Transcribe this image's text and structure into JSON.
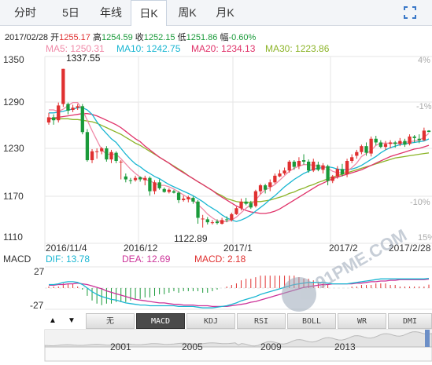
{
  "tabs": [
    {
      "label": "分时",
      "active": false
    },
    {
      "label": "5日",
      "active": false
    },
    {
      "label": "年线",
      "active": false
    },
    {
      "label": "日K",
      "active": true
    },
    {
      "label": "周K",
      "active": false
    },
    {
      "label": "月K",
      "active": false
    }
  ],
  "quote": {
    "date": "2017/02/28",
    "open_label": "开",
    "open": "1255.17",
    "high_label": "高",
    "high": "1254.59",
    "close_label": "收",
    "close": "1252.15",
    "low_label": "低",
    "low": "1251.86",
    "change_label": "幅",
    "change": "-0.60%"
  },
  "ma": [
    {
      "label": "MA5: 1250.31",
      "color": "#f08aa8"
    },
    {
      "label": "MA10: 1242.75",
      "color": "#19b6d2"
    },
    {
      "label": "MA20: 1234.13",
      "color": "#e0336a"
    },
    {
      "label": "MA30: 1223.86",
      "color": "#8cb428"
    }
  ],
  "y_ticks": [
    "1350",
    "1290",
    "1230",
    "1170",
    "1110"
  ],
  "pct_ticks": [
    "4%",
    "-1%",
    "-10%",
    "15%"
  ],
  "x_ticks": [
    "2016/11/4",
    "2016/12",
    "2017/1",
    "2017/2",
    "2017/2/28"
  ],
  "annotations": {
    "high": "1337.55",
    "low": "1122.89"
  },
  "macd": {
    "label": "MACD",
    "dif": "DIF: 13.78",
    "dea": "DEA: 12.69",
    "macd": "MACD: 2.18",
    "dif_color": "#19b6d2",
    "dea_color": "#cc3399",
    "macd_color": "#e03030",
    "y_ticks": [
      "27",
      "-27"
    ]
  },
  "indicator_buttons": [
    {
      "label": "无",
      "active": false
    },
    {
      "label": "MACD",
      "active": true
    },
    {
      "label": "KDJ",
      "active": false
    },
    {
      "label": "RSI",
      "active": false
    },
    {
      "label": "BOLL",
      "active": false
    },
    {
      "label": "WR",
      "active": false
    },
    {
      "label": "DMI",
      "active": false
    }
  ],
  "arrows": {
    "up": "▲",
    "down": "▼"
  },
  "timeline_ticks": [
    "2001",
    "2005",
    "2009",
    "2013"
  ],
  "watermark": "91PME.COM",
  "chart_data": {
    "type": "candlestick",
    "title": "",
    "xlabel": "",
    "ylabel": "",
    "ylim": [
      1100,
      1360
    ],
    "x_range": [
      "2016-10-26",
      "2017-02-28"
    ],
    "candles": [
      [
        1265,
        1272,
        1262,
        1278
      ],
      [
        1272,
        1268,
        1262,
        1276
      ],
      [
        1268,
        1288,
        1265,
        1292
      ],
      [
        1290,
        1337.55,
        1286,
        1337.55
      ],
      [
        1290,
        1281,
        1276,
        1292
      ],
      [
        1282,
        1285,
        1279,
        1289
      ],
      [
        1285,
        1287,
        1282,
        1290
      ],
      [
        1287,
        1252,
        1249,
        1290
      ],
      [
        1252,
        1214,
        1212,
        1256
      ],
      [
        1214,
        1226,
        1210,
        1229
      ],
      [
        1225,
        1226,
        1216,
        1230
      ],
      [
        1226,
        1230,
        1222,
        1232
      ],
      [
        1230,
        1215,
        1212,
        1233
      ],
      [
        1215,
        1225,
        1210,
        1228
      ],
      [
        1224,
        1213,
        1210,
        1226
      ],
      [
        1212,
        1212,
        1188,
        1214
      ],
      [
        1192,
        1188,
        1184,
        1196
      ],
      [
        1187,
        1186,
        1182,
        1190
      ],
      [
        1187,
        1190,
        1185,
        1193
      ],
      [
        1191,
        1188,
        1185,
        1192
      ],
      [
        1187,
        1190,
        1180,
        1193
      ],
      [
        1190,
        1172,
        1166,
        1192
      ],
      [
        1172,
        1184,
        1168,
        1187
      ],
      [
        1184,
        1176,
        1174,
        1188
      ],
      [
        1175,
        1171,
        1170,
        1177
      ],
      [
        1171,
        1174,
        1169,
        1176
      ],
      [
        1172,
        1170,
        1169,
        1174
      ],
      [
        1170,
        1160,
        1156,
        1172
      ],
      [
        1160,
        1162,
        1158,
        1166
      ],
      [
        1161,
        1164,
        1157,
        1166
      ],
      [
        1163,
        1158,
        1155,
        1165
      ],
      [
        1158,
        1136,
        1128,
        1160
      ],
      [
        1135,
        1135,
        1122.89,
        1140
      ],
      [
        1134,
        1130,
        1127,
        1137
      ],
      [
        1130,
        1130,
        1127,
        1133
      ],
      [
        1131,
        1129,
        1127,
        1134
      ],
      [
        1128,
        1133,
        1127,
        1136
      ],
      [
        1134,
        1133,
        1130,
        1138
      ],
      [
        1133,
        1141,
        1131,
        1143
      ],
      [
        1141,
        1149,
        1140,
        1151
      ],
      [
        1149,
        1158,
        1146,
        1162
      ],
      [
        1158,
        1155,
        1153,
        1163
      ],
      [
        1156,
        1150,
        1148,
        1159
      ],
      [
        1152,
        1172,
        1150,
        1174
      ],
      [
        1172,
        1180,
        1168,
        1182
      ],
      [
        1180,
        1174,
        1169,
        1182
      ],
      [
        1178,
        1184,
        1172,
        1188
      ],
      [
        1184,
        1193,
        1182,
        1196
      ],
      [
        1192,
        1196,
        1191,
        1201
      ],
      [
        1196,
        1200,
        1194,
        1204
      ],
      [
        1200,
        1212,
        1197,
        1214
      ],
      [
        1212,
        1205,
        1201,
        1214
      ],
      [
        1206,
        1213,
        1202,
        1218
      ],
      [
        1214,
        1212,
        1208,
        1222
      ],
      [
        1212,
        1200,
        1197,
        1215
      ],
      [
        1200,
        1212,
        1198,
        1216
      ],
      [
        1208,
        1201,
        1199,
        1212
      ],
      [
        1201,
        1207,
        1196,
        1210
      ],
      [
        1206,
        1186,
        1180,
        1208
      ],
      [
        1186,
        1192,
        1183,
        1194
      ],
      [
        1192,
        1202,
        1189,
        1206
      ],
      [
        1202,
        1195,
        1192,
        1209
      ],
      [
        1195,
        1213,
        1191,
        1216
      ],
      [
        1213,
        1218,
        1210,
        1222
      ],
      [
        1220,
        1225,
        1216,
        1228
      ],
      [
        1225,
        1233,
        1222,
        1235
      ],
      [
        1233,
        1224,
        1220,
        1238
      ],
      [
        1223,
        1243,
        1219,
        1246
      ],
      [
        1243,
        1238,
        1234,
        1247
      ],
      [
        1238,
        1232,
        1230,
        1241
      ],
      [
        1232,
        1236,
        1228,
        1240
      ],
      [
        1236,
        1238,
        1230,
        1241
      ],
      [
        1238,
        1236,
        1231,
        1240
      ],
      [
        1236,
        1240,
        1233,
        1244
      ],
      [
        1240,
        1235,
        1232,
        1243
      ],
      [
        1236,
        1246,
        1234,
        1249
      ],
      [
        1246,
        1244,
        1238,
        1248
      ],
      [
        1243,
        1241,
        1237,
        1249
      ],
      [
        1241,
        1254,
        1240,
        1258
      ],
      [
        1254,
        1252.15,
        1251.86,
        1254.59
      ]
    ],
    "ma5": [
      1282,
      1282,
      1280,
      1283,
      1288,
      1292,
      1292,
      1282,
      1268,
      1254,
      1241,
      1228,
      1222,
      1222,
      1222,
      1216,
      1209,
      1202,
      1196,
      1191,
      1188,
      1186,
      1183,
      1180,
      1180,
      1178,
      1175,
      1171,
      1167,
      1163,
      1160,
      1154,
      1148,
      1141,
      1136,
      1132,
      1131,
      1131,
      1133,
      1137,
      1143,
      1149,
      1154,
      1160,
      1168,
      1174,
      1177,
      1181,
      1187,
      1193,
      1199,
      1203,
      1206,
      1208,
      1208,
      1207,
      1206,
      1206,
      1203,
      1199,
      1197,
      1197,
      1199,
      1204,
      1210,
      1219,
      1223,
      1227,
      1234,
      1237,
      1237,
      1237,
      1237,
      1237,
      1238,
      1239,
      1240,
      1241,
      1245,
      1250.31
    ],
    "ma10": [
      1278,
      1278,
      1279,
      1280,
      1282,
      1283,
      1285,
      1285,
      1282,
      1276,
      1266,
      1257,
      1250,
      1243,
      1238,
      1230,
      1222,
      1215,
      1209,
      1205,
      1200,
      1196,
      1192,
      1189,
      1185,
      1181,
      1178,
      1175,
      1172,
      1169,
      1166,
      1162,
      1158,
      1153,
      1149,
      1145,
      1140,
      1136,
      1133,
      1131,
      1133,
      1136,
      1140,
      1145,
      1150,
      1155,
      1161,
      1166,
      1172,
      1178,
      1183,
      1188,
      1192,
      1196,
      1199,
      1202,
      1203,
      1204,
      1205,
      1204,
      1202,
      1201,
      1201,
      1202,
      1204,
      1207,
      1211,
      1215,
      1219,
      1224,
      1228,
      1231,
      1233,
      1235,
      1236,
      1237,
      1238,
      1239,
      1240,
      1242.75
    ],
    "ma20": [
      1270,
      1271,
      1272,
      1273,
      1274,
      1275,
      1276,
      1277,
      1277,
      1276,
      1274,
      1271,
      1268,
      1265,
      1262,
      1258,
      1253,
      1248,
      1243,
      1239,
      1233,
      1228,
      1223,
      1218,
      1214,
      1210,
      1205,
      1201,
      1197,
      1193,
      1189,
      1185,
      1181,
      1177,
      1173,
      1168,
      1164,
      1160,
      1156,
      1152,
      1149,
      1146,
      1144,
      1143,
      1142,
      1142,
      1143,
      1145,
      1148,
      1152,
      1156,
      1160,
      1164,
      1168,
      1172,
      1176,
      1180,
      1183,
      1186,
      1189,
      1191,
      1193,
      1195,
      1197,
      1199,
      1201,
      1204,
      1207,
      1210,
      1213,
      1216,
      1219,
      1221,
      1223,
      1225,
      1227,
      1229,
      1230,
      1232,
      1234.13
    ],
    "ma30": [
      1270,
      1270,
      1270,
      1270,
      1270,
      1269,
      1269,
      1268,
      1267,
      1266,
      1264,
      1261,
      1258,
      1255,
      1252,
      1249,
      1245,
      1241,
      1237,
      1234,
      1230,
      1226,
      1222,
      1218,
      1214,
      1210,
      1206,
      1202,
      1198,
      1193,
      1189,
      1185,
      1181,
      1177,
      1173,
      1169,
      1166,
      1162,
      1160,
      1158,
      1157,
      1157,
      1157,
      1158,
      1158,
      1159,
      1160,
      1162,
      1164,
      1166,
      1169,
      1171,
      1174,
      1176,
      1179,
      1181,
      1184,
      1186,
      1189,
      1191,
      1193,
      1195,
      1197,
      1199,
      1201,
      1203,
      1205,
      1207,
      1209,
      1211,
      1213,
      1215,
      1217,
      1218,
      1219,
      1220,
      1221,
      1222,
      1223,
      1223.86
    ],
    "macd": {
      "ylim": [
        -35,
        35
      ],
      "dif": [
        5,
        5,
        6,
        8,
        9,
        9,
        8,
        5,
        0,
        -5,
        -9,
        -12,
        -14,
        -16,
        -17,
        -19,
        -21,
        -22,
        -23,
        -24,
        -24,
        -25,
        -25,
        -25,
        -25,
        -25,
        -25,
        -26,
        -26,
        -26,
        -26,
        -27,
        -28,
        -28,
        -28,
        -27,
        -26,
        -25,
        -23,
        -21,
        -18,
        -16,
        -14,
        -12,
        -9,
        -7,
        -5,
        -3,
        -1,
        1,
        3,
        5,
        6,
        7,
        8,
        8,
        8,
        8,
        7,
        6,
        6,
        6,
        6,
        7,
        8,
        9,
        10,
        11,
        12,
        13,
        13,
        13,
        13,
        13,
        13,
        13,
        13,
        13,
        13,
        13.78
      ],
      "dea": [
        4,
        4,
        5,
        5,
        6,
        6,
        7,
        6,
        5,
        3,
        1,
        -1,
        -4,
        -6,
        -8,
        -10,
        -12,
        -14,
        -16,
        -17,
        -18,
        -19,
        -20,
        -21,
        -21,
        -22,
        -23,
        -23,
        -24,
        -24,
        -24,
        -25,
        -25,
        -25,
        -26,
        -26,
        -26,
        -26,
        -25,
        -24,
        -23,
        -22,
        -20,
        -19,
        -17,
        -15,
        -13,
        -11,
        -9,
        -7,
        -5,
        -3,
        -1,
        1,
        2,
        3,
        4,
        5,
        5,
        6,
        6,
        6,
        6,
        6,
        7,
        7,
        8,
        9,
        9,
        10,
        10,
        11,
        11,
        12,
        12,
        12,
        12,
        12,
        12,
        12.69
      ],
      "hist": [
        1,
        1,
        1,
        3,
        3,
        3,
        1,
        -1,
        -5,
        -8,
        -10,
        -11,
        -10,
        -10,
        -9,
        -9,
        -9,
        -8,
        -7,
        -7,
        -6,
        -6,
        -5,
        -4,
        -4,
        -3,
        -2,
        -3,
        -2,
        -2,
        -2,
        -2,
        -3,
        -3,
        -2,
        -1,
        0,
        1,
        2,
        3,
        5,
        6,
        6,
        7,
        8,
        8,
        8,
        8,
        8,
        8,
        8,
        8,
        7,
        6,
        6,
        5,
        4,
        3,
        2,
        0,
        0,
        0,
        0,
        1,
        1,
        2,
        2,
        2,
        3,
        3,
        3,
        2,
        2,
        1,
        1,
        1,
        1,
        1,
        1,
        2.18
      ]
    }
  }
}
